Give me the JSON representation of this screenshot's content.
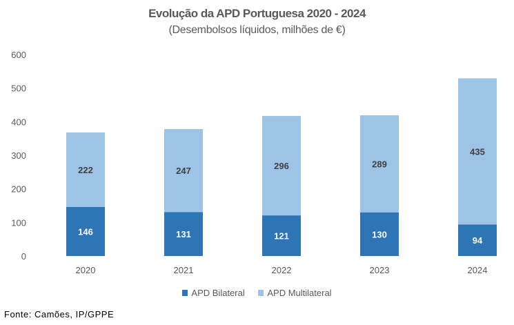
{
  "chart_data": {
    "type": "bar",
    "stacked": true,
    "title": "Evolução da APD Portuguesa 2020 - 2024",
    "subtitle": "(Desembolsos líquidos, milhões de €)",
    "xlabel": "",
    "ylabel": "",
    "ylim": [
      0,
      600
    ],
    "yticks": [
      0,
      100,
      200,
      300,
      400,
      500,
      600
    ],
    "grid": false,
    "legend_position": "bottom",
    "categories": [
      "2020",
      "2021",
      "2022",
      "2023",
      "2024"
    ],
    "series": [
      {
        "name": "APD Bilateral",
        "color": "#2e75b6",
        "label_color": "#ffffff",
        "values": [
          146,
          131,
          121,
          130,
          94
        ]
      },
      {
        "name": "APD Multilateral",
        "color": "#9dc3e6",
        "label_color": "#404040",
        "values": [
          222,
          247,
          296,
          289,
          435
        ]
      }
    ]
  },
  "source": "Fonte: Camões, IP/GPPE"
}
